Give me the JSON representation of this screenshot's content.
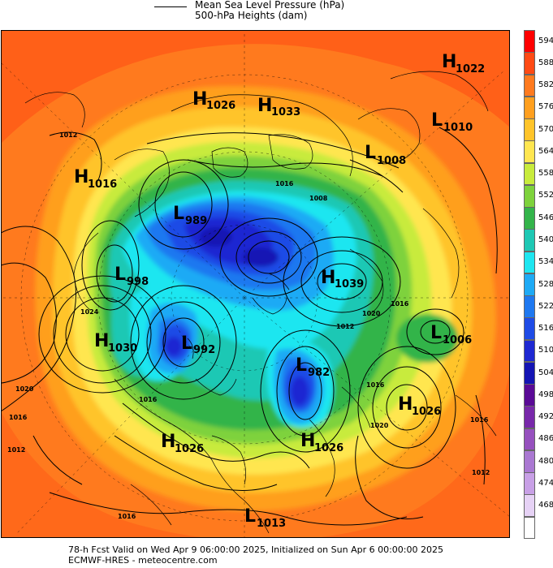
{
  "legend": {
    "line1": "Mean Sea Level Pressure (hPa)",
    "line2": "500-hPa Heights (dam)"
  },
  "footer": {
    "line1": "78-h Fcst Valid on Wed Apr  9 06:00:00 2025, Initialized on Sun Apr  6 00:00:00 2025",
    "line2": "ECMWF-HRES  - meteocentre.com"
  },
  "colorbar": [
    {
      "value": "594",
      "color": "#ff0000"
    },
    {
      "value": "588",
      "color": "#ff4a14"
    },
    {
      "value": "582",
      "color": "#ff7a1e"
    },
    {
      "value": "576",
      "color": "#ff9f1e"
    },
    {
      "value": "570",
      "color": "#ffc42a"
    },
    {
      "value": "564",
      "color": "#ffe650"
    },
    {
      "value": "558",
      "color": "#c8eb3c"
    },
    {
      "value": "552",
      "color": "#7ed23c"
    },
    {
      "value": "546",
      "color": "#33b44a"
    },
    {
      "value": "540",
      "color": "#1ec8b4"
    },
    {
      "value": "534",
      "color": "#1ee6f0"
    },
    {
      "value": "528",
      "color": "#1eaaf5"
    },
    {
      "value": "522",
      "color": "#1e78f0"
    },
    {
      "value": "516",
      "color": "#1e4be6"
    },
    {
      "value": "510",
      "color": "#1e28d2"
    },
    {
      "value": "504",
      "color": "#1414b4"
    },
    {
      "value": "498",
      "color": "#5a0a96"
    },
    {
      "value": "492",
      "color": "#7828aa"
    },
    {
      "value": "486",
      "color": "#9650be"
    },
    {
      "value": "480",
      "color": "#aa78d2"
    },
    {
      "value": "474",
      "color": "#c8a0e6"
    },
    {
      "value": "468",
      "color": "#e6d2f5"
    },
    {
      "value": "",
      "color": "#ffffff"
    }
  ],
  "systems": [
    {
      "letter": "H",
      "value": "1022"
    },
    {
      "letter": "H",
      "value": "1026"
    },
    {
      "letter": "H",
      "value": "1033"
    },
    {
      "letter": "L",
      "value": "1010"
    },
    {
      "letter": "L",
      "value": "1008"
    },
    {
      "letter": "H",
      "value": "1016"
    },
    {
      "letter": "L",
      "value": "989"
    },
    {
      "letter": "L",
      "value": "998"
    },
    {
      "letter": "H",
      "value": "1039"
    },
    {
      "letter": "H",
      "value": "1030"
    },
    {
      "letter": "L",
      "value": "992"
    },
    {
      "letter": "L",
      "value": "1006"
    },
    {
      "letter": "L",
      "value": "982"
    },
    {
      "letter": "H",
      "value": "1026"
    },
    {
      "letter": "H",
      "value": "1026"
    },
    {
      "letter": "H",
      "value": "1026"
    },
    {
      "letter": "L",
      "value": "1013"
    }
  ],
  "isobar_labels": [
    "1012",
    "1016",
    "1008",
    "1024",
    "1020",
    "1016",
    "1016",
    "1012",
    "1020",
    "1016",
    "1012",
    "1016",
    "1020",
    "1016",
    "1016",
    "1012"
  ]
}
